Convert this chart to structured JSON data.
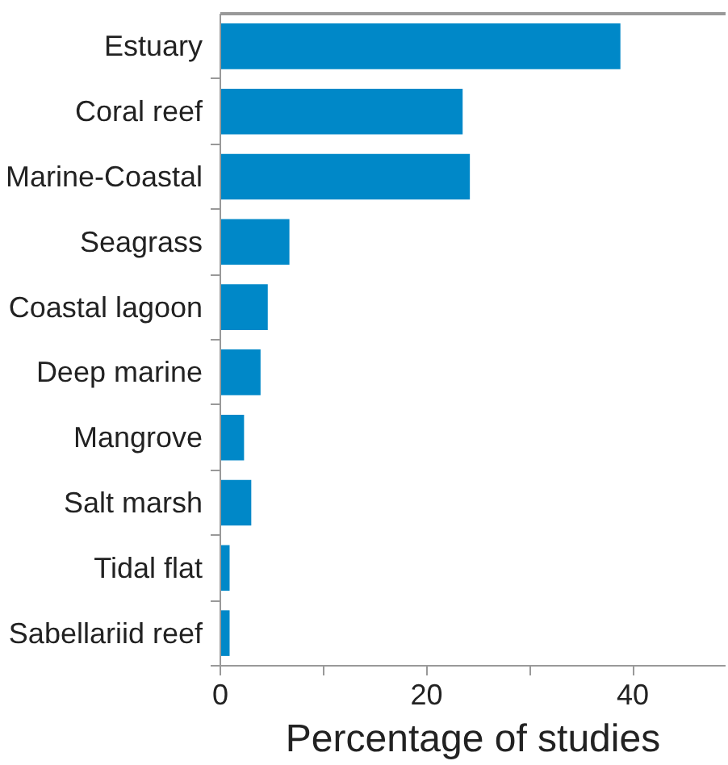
{
  "chart_data": {
    "type": "bar",
    "orientation": "horizontal",
    "xlabel": "Percentage of studies",
    "categories": [
      "Estuary",
      "Coral reef",
      "Marine-Coastal",
      "Seagrass",
      "Coastal lagoon",
      "Deep marine",
      "Mangrove",
      "Salt marsh",
      "Tidal flat",
      "Sabellariid reef"
    ],
    "values": [
      38.8,
      23.5,
      24.2,
      6.7,
      4.6,
      3.9,
      2.3,
      3.0,
      0.9,
      0.9
    ],
    "color": "#0088c8",
    "xlim": [
      0,
      49
    ],
    "xticks": [
      0,
      {
        "value": 10,
        "label": null
      },
      20,
      {
        "value": 30,
        "label": null
      },
      40
    ],
    "grid": false
  }
}
